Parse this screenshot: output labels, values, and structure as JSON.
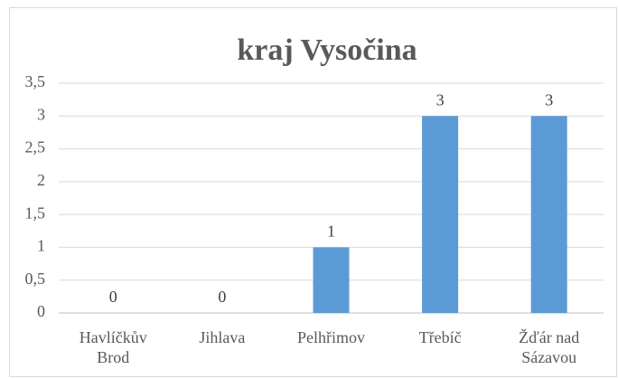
{
  "chart_data": {
    "type": "bar",
    "title": "kraj Vysočina",
    "categories": [
      "Havlíčkův Brod",
      "Jihlava",
      "Pelhřimov",
      "Třebíč",
      "Žďár nad Sázavou"
    ],
    "values": [
      0,
      0,
      1,
      3,
      3
    ],
    "color": "#5b9bd5",
    "ylim": [
      0,
      3.5
    ],
    "yticks": [
      0,
      {
        "value": 0.5,
        "label": "0,5"
      },
      1,
      {
        "value": 1.5,
        "label": "1,5"
      },
      2,
      {
        "value": 2.5,
        "label": "2,5"
      },
      3,
      {
        "value": 3.5,
        "label": "3,5"
      }
    ],
    "grid": true
  }
}
